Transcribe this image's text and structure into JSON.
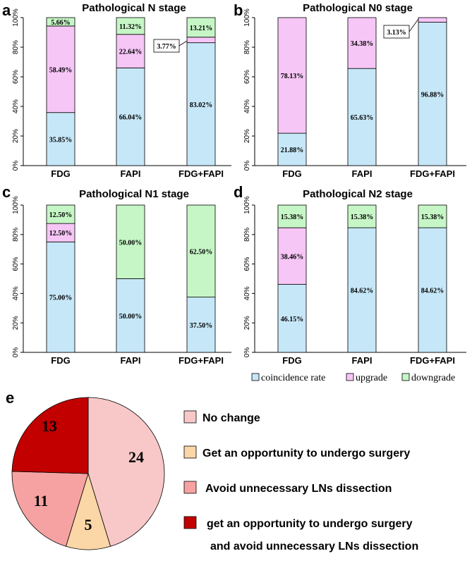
{
  "colors": {
    "coincidence": "#c6e7f7",
    "upgrade": "#f6c6f6",
    "downgrade": "#c6f6c6",
    "no_change": "#f8c8c8",
    "surgery": "#fbd6a6",
    "avoid": "#f6a2a2",
    "both": "#c20000"
  },
  "legend": {
    "coincidence": "coincidence rate",
    "upgrade": "upgrade",
    "downgrade": "downgrade"
  },
  "pie_legend": {
    "no_change": "No change",
    "surgery": "Get an opportunity to undergo surgery",
    "avoid": "Avoid unnecessary LNs dissection",
    "both_line1": "get an opportunity to undergo surgery",
    "both_line2": "and avoid unnecessary LNs dissection"
  },
  "chart_data": [
    {
      "panel": "a",
      "type": "bar",
      "stacked": true,
      "title": "Pathological N stage",
      "categories": [
        "FDG",
        "FAPI",
        "FDG+FAPI"
      ],
      "yticks": [
        "0%",
        "20%",
        "40%",
        "60%",
        "80%",
        "100%"
      ],
      "ylim": [
        0,
        100
      ],
      "series": [
        {
          "name": "coincidence rate",
          "values": [
            35.85,
            66.04,
            83.02
          ],
          "labels": [
            "35.85%",
            "66.04%",
            "83.02%"
          ]
        },
        {
          "name": "upgrade",
          "values": [
            58.49,
            22.64,
            3.77
          ],
          "labels": [
            "58.49%",
            "22.64%",
            "3.77%"
          ]
        },
        {
          "name": "downgrade",
          "values": [
            5.66,
            11.32,
            13.21
          ],
          "labels": [
            "5.66%",
            "11.32%",
            "13.21%"
          ]
        }
      ]
    },
    {
      "panel": "b",
      "type": "bar",
      "stacked": true,
      "title": "Pathological N0 stage",
      "categories": [
        "FDG",
        "FAPI",
        "FDG+FAPI"
      ],
      "yticks": [
        "0%",
        "20%",
        "40%",
        "60%",
        "80%",
        "100%"
      ],
      "ylim": [
        0,
        100
      ],
      "series": [
        {
          "name": "coincidence rate",
          "values": [
            21.88,
            65.63,
            96.88
          ],
          "labels": [
            "21.88%",
            "65.63%",
            "96.88%"
          ]
        },
        {
          "name": "upgrade",
          "values": [
            78.13,
            34.38,
            3.13
          ],
          "labels": [
            "78.13%",
            "34.38%",
            "3.13%"
          ]
        },
        {
          "name": "downgrade",
          "values": [
            0,
            0,
            0
          ],
          "labels": [
            "",
            "",
            ""
          ]
        }
      ]
    },
    {
      "panel": "c",
      "type": "bar",
      "stacked": true,
      "title": "Pathological N1 stage",
      "categories": [
        "FDG",
        "FAPI",
        "FDG+FAPI"
      ],
      "yticks": [
        "0%",
        "20%",
        "40%",
        "60%",
        "80%",
        "100%"
      ],
      "ylim": [
        0,
        100
      ],
      "series": [
        {
          "name": "coincidence rate",
          "values": [
            75.0,
            50.0,
            37.5
          ],
          "labels": [
            "75.00%",
            "50.00%",
            "37.50%"
          ]
        },
        {
          "name": "upgrade",
          "values": [
            12.5,
            0,
            0
          ],
          "labels": [
            "12.50%",
            "",
            ""
          ]
        },
        {
          "name": "downgrade",
          "values": [
            12.5,
            50.0,
            62.5
          ],
          "labels": [
            "12.50%",
            "50.00%",
            "62.50%"
          ]
        }
      ]
    },
    {
      "panel": "d",
      "type": "bar",
      "stacked": true,
      "title": "Pathological N2 stage",
      "categories": [
        "FDG",
        "FAPI",
        "FDG+FAPI"
      ],
      "yticks": [
        "0%",
        "20%",
        "40%",
        "60%",
        "80%",
        "100%"
      ],
      "ylim": [
        0,
        100
      ],
      "series": [
        {
          "name": "coincidence rate",
          "values": [
            46.15,
            84.62,
            84.62
          ],
          "labels": [
            "46.15%",
            "84.62%",
            "84.62%"
          ]
        },
        {
          "name": "upgrade",
          "values": [
            38.46,
            0,
            0
          ],
          "labels": [
            "38.46%",
            "",
            ""
          ]
        },
        {
          "name": "downgrade",
          "values": [
            15.38,
            15.38,
            15.38
          ],
          "labels": [
            "15.38%",
            "15.38%",
            "15.38%"
          ]
        }
      ]
    },
    {
      "panel": "e",
      "type": "pie",
      "slices": [
        {
          "name": "No change",
          "value": 24,
          "label": "24"
        },
        {
          "name": "Get an opportunity to undergo surgery",
          "value": 5,
          "label": "5"
        },
        {
          "name": "Avoid unnecessary LNs dissection",
          "value": 11,
          "label": "11"
        },
        {
          "name": "get an opportunity to undergo surgery and avoid unnecessary LNs dissection",
          "value": 13,
          "label": "13"
        }
      ]
    }
  ]
}
